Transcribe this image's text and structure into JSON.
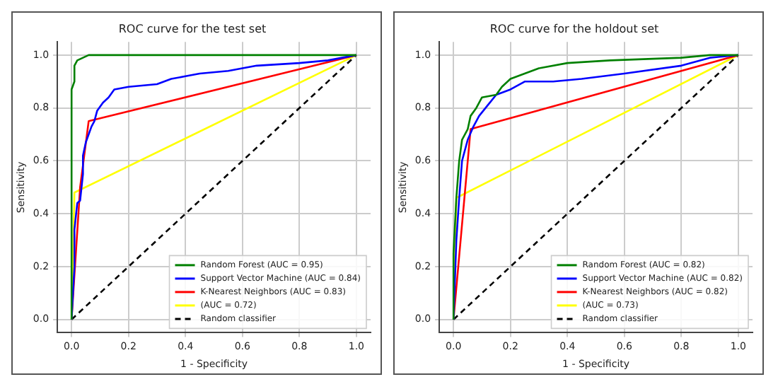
{
  "chart_data": [
    {
      "type": "line",
      "title": "ROC curve for the test set",
      "xlabel": "1 - Specificity",
      "ylabel": "Sensitivity",
      "xlim": [
        -0.05,
        1.05
      ],
      "ylim": [
        -0.05,
        1.05
      ],
      "xticks": [
        {
          "value": 0,
          "label": "0.0"
        },
        {
          "value": 0.2,
          "label": "0.2"
        },
        {
          "value": 0.4,
          "label": "0.4"
        },
        {
          "value": 0.6,
          "label": "0.6"
        },
        {
          "value": 0.8,
          "label": "0.8"
        },
        {
          "value": 1,
          "label": "1.0"
        }
      ],
      "yticks": [
        {
          "value": 0,
          "label": "0.0"
        },
        {
          "value": 0.2,
          "label": "0.2"
        },
        {
          "value": 0.4,
          "label": "0.4"
        },
        {
          "value": 0.6,
          "label": "0.6"
        },
        {
          "value": 0.8,
          "label": "0.8"
        },
        {
          "value": 1,
          "label": "1.0"
        }
      ],
      "grid": true,
      "legend": "bottom right",
      "marker": "none",
      "series": [
        {
          "name": "Random Forest (AUC = 0.95)",
          "color": "#008000",
          "x": [
            0,
            0,
            0.01,
            0.01,
            0.02,
            0.04,
            0.06,
            1
          ],
          "values": [
            0,
            0.87,
            0.9,
            0.96,
            0.98,
            0.99,
            1,
            1
          ]
        },
        {
          "name": "Support Vector Machine (AUC = 0.84)",
          "color": "#0000ff",
          "x": [
            0,
            0.01,
            0.01,
            0.02,
            0.03,
            0.04,
            0.04,
            0.05,
            0.06,
            0.07,
            0.08,
            0.09,
            0.11,
            0.13,
            0.15,
            0.2,
            0.3,
            0.35,
            0.4,
            0.45,
            0.55,
            0.65,
            0.8,
            0.9,
            1
          ],
          "values": [
            0,
            0.2,
            0.34,
            0.44,
            0.45,
            0.55,
            0.62,
            0.67,
            0.7,
            0.73,
            0.75,
            0.79,
            0.82,
            0.84,
            0.87,
            0.88,
            0.89,
            0.91,
            0.92,
            0.93,
            0.94,
            0.96,
            0.97,
            0.98,
            1
          ]
        },
        {
          "name": "K-Nearest Neighbors (AUC = 0.83)",
          "color": "#ff0000",
          "x": [
            0,
            0.03,
            0.06,
            1
          ],
          "values": [
            0,
            0.5,
            0.75,
            1
          ]
        },
        {
          "name": "(AUC = 0.72)",
          "color": "#ffff00",
          "x": [
            0,
            0.01,
            1
          ],
          "values": [
            0,
            0.48,
            1
          ]
        },
        {
          "name": "Random classifier",
          "color": "#000000",
          "line_style": "dashed",
          "x": [
            0,
            1
          ],
          "values": [
            0,
            1
          ]
        }
      ]
    },
    {
      "type": "line",
      "title": "ROC curve for the holdout set",
      "xlabel": "1 - Specificity",
      "ylabel": "Sensitivity",
      "xlim": [
        -0.05,
        1.05
      ],
      "ylim": [
        -0.05,
        1.05
      ],
      "xticks": [
        {
          "value": 0,
          "label": "0.0"
        },
        {
          "value": 0.2,
          "label": "0.2"
        },
        {
          "value": 0.4,
          "label": "0.4"
        },
        {
          "value": 0.6,
          "label": "0.6"
        },
        {
          "value": 0.8,
          "label": "0.8"
        },
        {
          "value": 1,
          "label": "1.0"
        }
      ],
      "yticks": [
        {
          "value": 0,
          "label": "0.0"
        },
        {
          "value": 0.2,
          "label": "0.2"
        },
        {
          "value": 0.4,
          "label": "0.4"
        },
        {
          "value": 0.6,
          "label": "0.6"
        },
        {
          "value": 0.8,
          "label": "0.8"
        },
        {
          "value": 1,
          "label": "1.0"
        }
      ],
      "grid": true,
      "legend": "bottom right",
      "marker": "none",
      "series": [
        {
          "name": "Random Forest (AUC = 0.82)",
          "color": "#008000",
          "x": [
            0,
            0,
            0.01,
            0.02,
            0.03,
            0.05,
            0.06,
            0.08,
            0.1,
            0.15,
            0.17,
            0.2,
            0.25,
            0.3,
            0.4,
            0.55,
            0.8,
            0.9,
            1
          ],
          "values": [
            0,
            0.25,
            0.46,
            0.6,
            0.68,
            0.72,
            0.77,
            0.8,
            0.84,
            0.85,
            0.88,
            0.91,
            0.93,
            0.95,
            0.97,
            0.98,
            0.99,
            1,
            1
          ]
        },
        {
          "name": "Support Vector Machine (AUC = 0.82)",
          "color": "#0000ff",
          "x": [
            0,
            0.01,
            0.02,
            0.03,
            0.05,
            0.07,
            0.09,
            0.12,
            0.15,
            0.2,
            0.25,
            0.35,
            0.45,
            0.6,
            0.8,
            0.9,
            1
          ],
          "values": [
            0,
            0.3,
            0.46,
            0.6,
            0.68,
            0.73,
            0.77,
            0.81,
            0.85,
            0.87,
            0.9,
            0.9,
            0.91,
            0.93,
            0.96,
            0.99,
            1
          ]
        },
        {
          "name": "K-Nearest Neighbors (AUC = 0.82)",
          "color": "#ff0000",
          "x": [
            0,
            0.06,
            1
          ],
          "values": [
            0,
            0.72,
            1
          ]
        },
        {
          "name": "(AUC = 0.73)",
          "color": "#ffff00",
          "x": [
            0,
            0.01,
            1
          ],
          "values": [
            0,
            0.46,
            1
          ]
        },
        {
          "name": "Random classifier",
          "color": "#000000",
          "line_style": "dashed",
          "x": [
            0,
            1
          ],
          "values": [
            0,
            1
          ]
        }
      ]
    }
  ]
}
